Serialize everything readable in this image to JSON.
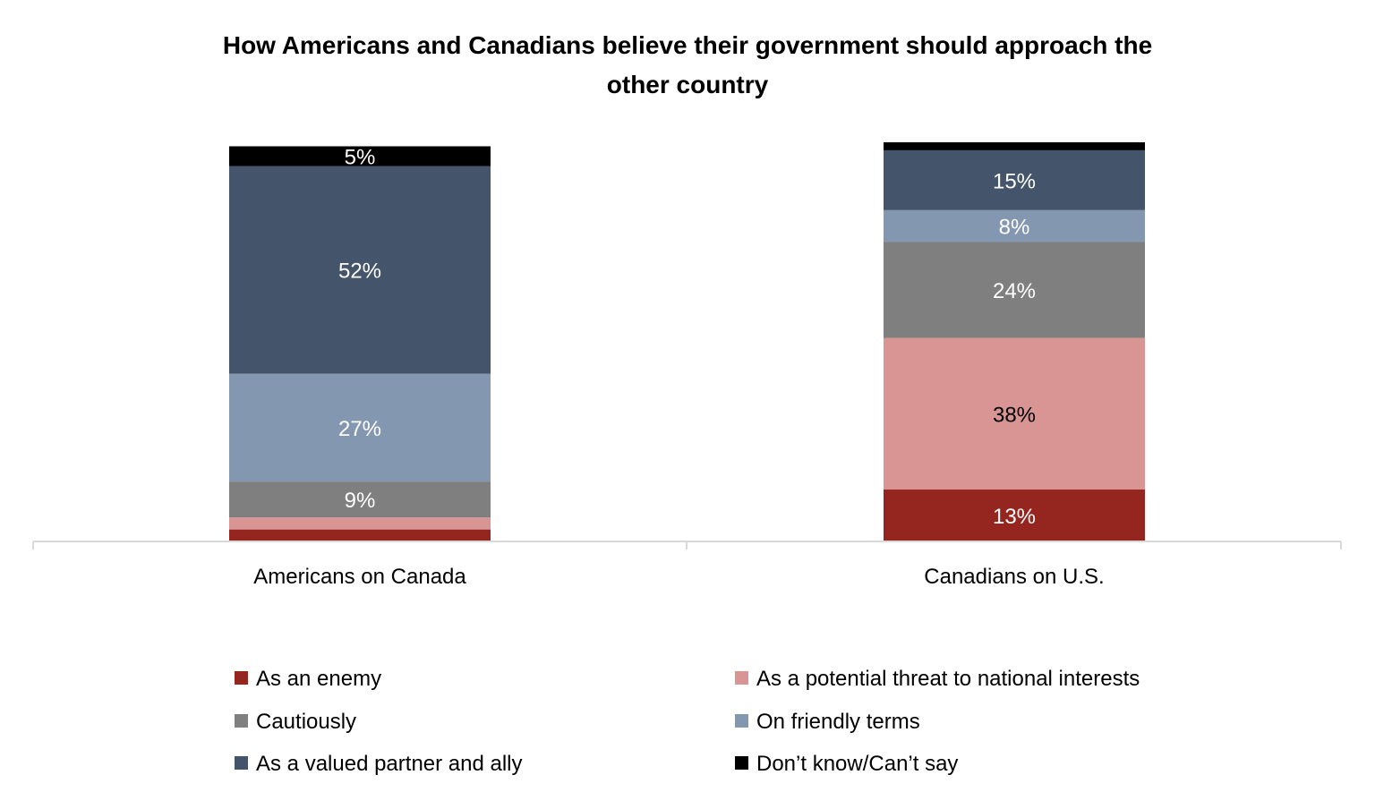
{
  "chart_data": {
    "type": "bar",
    "stacked": true,
    "title": "How Americans and Canadians believe their government should approach the other country",
    "title_lines": [
      "How Americans and Canadians believe their government should approach the",
      "other country"
    ],
    "categories": [
      "Americans on Canada",
      "Canadians on U.S."
    ],
    "ylim": [
      0,
      100
    ],
    "grid": false,
    "legend_position": "bottom",
    "series": [
      {
        "name": "As an enemy",
        "color": "#95261f",
        "values": [
          3,
          13
        ],
        "labels": [
          "",
          "13%"
        ],
        "label_color": "#ffffff"
      },
      {
        "name": "As a potential threat to national interests",
        "color": "#d99594",
        "values": [
          3,
          38
        ],
        "labels": [
          "",
          "38%"
        ],
        "label_color": "#000000"
      },
      {
        "name": "Cautiously",
        "color": "#7f7f7f",
        "values": [
          9,
          24
        ],
        "labels": [
          "9%",
          "24%"
        ],
        "label_color": "#ffffff"
      },
      {
        "name": "On friendly terms",
        "color": "#8497b0",
        "values": [
          27,
          8
        ],
        "labels": [
          "27%",
          "8%"
        ],
        "label_color": "#ffffff"
      },
      {
        "name": "As a valued partner and ally",
        "color": "#44546a",
        "values": [
          52,
          15
        ],
        "labels": [
          "52%",
          "15%"
        ],
        "label_color": "#ffffff"
      },
      {
        "name": "Don’t know/Can’t say",
        "color": "#000000",
        "values": [
          5,
          2
        ],
        "labels": [
          "5%",
          ""
        ],
        "label_color": "#ffffff"
      }
    ]
  }
}
